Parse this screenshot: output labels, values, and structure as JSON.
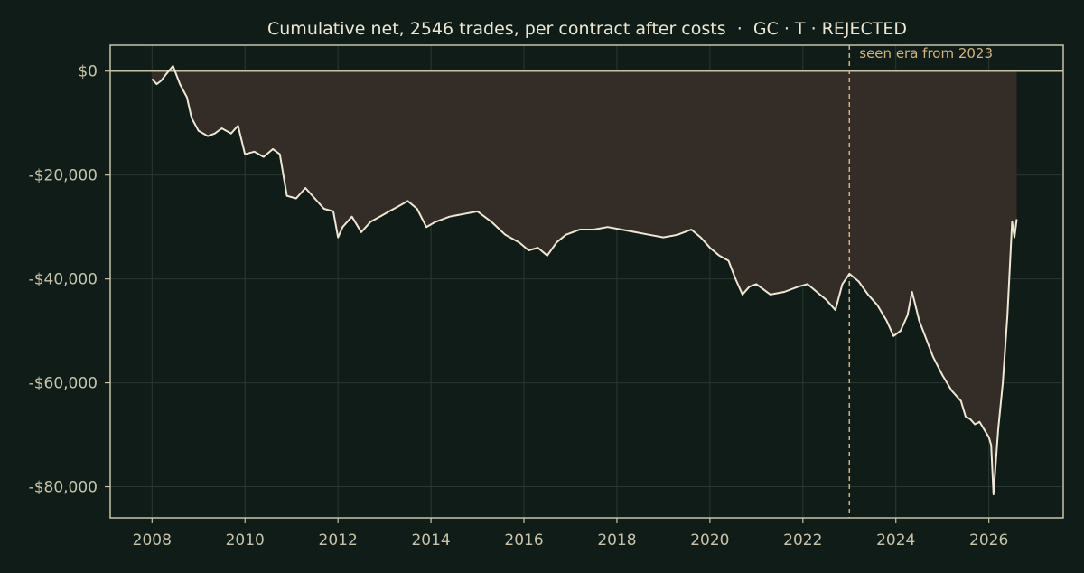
{
  "colors": {
    "background": "#0f1c17",
    "axes": "#c8c3a8",
    "grid": "#2a3a32",
    "tick_text": "#c8c3a8",
    "title_text": "#ece6d2",
    "line": "#efe7d4",
    "fill": "#332c27",
    "zero_line": "#c8c3a8",
    "era_marker": "#d6b27a"
  },
  "chart_data": {
    "type": "line",
    "title": "Cumulative net, 2546 trades, per contract after costs  ·  GC · T · REJECTED",
    "xlabel": "",
    "ylabel": "",
    "xlim": [
      2007.1,
      2027.6
    ],
    "ylim": [
      -86000,
      5000
    ],
    "x_ticks": [
      2008,
      2010,
      2012,
      2014,
      2016,
      2018,
      2020,
      2022,
      2024,
      2026
    ],
    "x_tick_labels": [
      "2008",
      "2010",
      "2012",
      "2014",
      "2016",
      "2018",
      "2020",
      "2022",
      "2024",
      "2026"
    ],
    "y_ticks": [
      0,
      -20000,
      -40000,
      -60000,
      -80000
    ],
    "y_tick_labels": [
      "$0",
      "-$20,000",
      "-$40,000",
      "-$60,000",
      "-$80,000"
    ],
    "grid": true,
    "fill_to_zero": true,
    "annotation": {
      "x": 2023.0,
      "label": "seen era from 2023"
    },
    "series": [
      {
        "x": [
          2008.0,
          2008.1,
          2008.2,
          2008.3,
          2008.45,
          2008.6,
          2008.75,
          2008.85,
          2009.0,
          2009.2,
          2009.35,
          2009.5,
          2009.7,
          2009.85,
          2010.0,
          2010.2,
          2010.4,
          2010.6,
          2010.75,
          2010.9,
          2011.1,
          2011.3,
          2011.5,
          2011.7,
          2011.9,
          2012.0,
          2012.1,
          2012.3,
          2012.5,
          2012.7,
          2012.9,
          2013.1,
          2013.3,
          2013.5,
          2013.7,
          2013.9,
          2014.1,
          2014.4,
          2014.7,
          2015.0,
          2015.3,
          2015.6,
          2015.9,
          2016.1,
          2016.3,
          2016.5,
          2016.7,
          2016.9,
          2017.2,
          2017.5,
          2017.8,
          2018.1,
          2018.4,
          2018.7,
          2019.0,
          2019.3,
          2019.6,
          2019.8,
          2020.0,
          2020.2,
          2020.4,
          2020.55,
          2020.7,
          2020.85,
          2021.0,
          2021.3,
          2021.6,
          2021.9,
          2022.1,
          2022.3,
          2022.5,
          2022.7,
          2022.85,
          2023.0,
          2023.2,
          2023.4,
          2023.6,
          2023.8,
          2023.95,
          2024.1,
          2024.25,
          2024.35,
          2024.5,
          2024.65,
          2024.8,
          2025.0,
          2025.2,
          2025.4,
          2025.5,
          2025.6,
          2025.7,
          2025.8,
          2025.9,
          2026.0,
          2026.05,
          2026.1,
          2026.2,
          2026.3,
          2026.4,
          2026.5,
          2026.55,
          2026.6
        ],
        "values": [
          -1500,
          -2500,
          -1800,
          -600,
          1000,
          -2500,
          -5000,
          -9000,
          -11500,
          -12500,
          -12000,
          -11000,
          -12000,
          -10500,
          -16000,
          -15500,
          -16500,
          -15000,
          -16000,
          -24000,
          -24500,
          -22500,
          -24500,
          -26500,
          -27000,
          -32000,
          -30000,
          -28000,
          -31000,
          -29000,
          -28000,
          -27000,
          -26000,
          -25000,
          -26500,
          -30000,
          -29000,
          -28000,
          -27500,
          -27000,
          -29000,
          -31500,
          -33000,
          -34500,
          -34000,
          -35500,
          -33000,
          -31500,
          -30500,
          -30500,
          -30000,
          -30500,
          -31000,
          -31500,
          -32000,
          -31500,
          -30500,
          -32000,
          -34000,
          -35500,
          -36500,
          -40000,
          -43000,
          -41500,
          -41000,
          -43000,
          -42500,
          -41500,
          -41000,
          -42500,
          -44000,
          -46000,
          -41000,
          -39000,
          -40500,
          -43000,
          -45000,
          -48000,
          -51000,
          -50000,
          -47000,
          -42500,
          -48000,
          -51500,
          -55000,
          -58500,
          -61500,
          -63500,
          -66500,
          -67000,
          -68000,
          -67500,
          -69000,
          -70500,
          -72000,
          -81500,
          -69000,
          -60000,
          -47000,
          -29000,
          -32000,
          -28500
        ]
      }
    ]
  }
}
